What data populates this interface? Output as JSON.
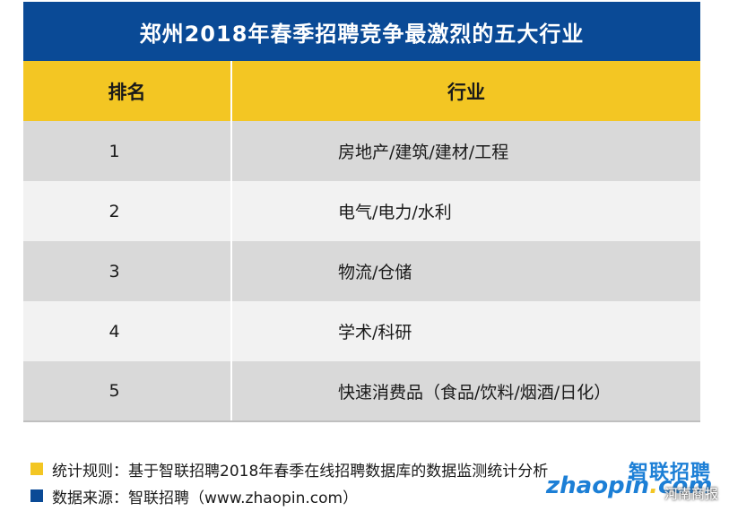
{
  "title": "郑州2018年春季招聘竞争最激烈的五大行业",
  "table": {
    "headers": {
      "rank": "排名",
      "industry": "行业"
    },
    "rows": [
      {
        "rank": "1",
        "industry": "房地产/建筑/建材/工程"
      },
      {
        "rank": "2",
        "industry": "电气/电力/水利"
      },
      {
        "rank": "3",
        "industry": "物流/仓储"
      },
      {
        "rank": "4",
        "industry": "学术/科研"
      },
      {
        "rank": "5",
        "industry": "快速消费品（食品/饮料/烟酒/日化）"
      }
    ]
  },
  "notes": {
    "rule": "统计规则：基于智联招聘2018年春季在线招聘数据库的数据监测统计分析",
    "source": "数据来源：智联招聘（www.zhaopin.com）"
  },
  "logo": {
    "cn": "智联招聘",
    "en_main": "zhaopin",
    "en_dot": ".",
    "en_tld": "com"
  },
  "watermark": "河南商报",
  "colors": {
    "header_blue": "#0a4a96",
    "accent_yellow": "#f3c623",
    "row_dark": "#d9d9d9",
    "row_light": "#f2f2f2"
  }
}
